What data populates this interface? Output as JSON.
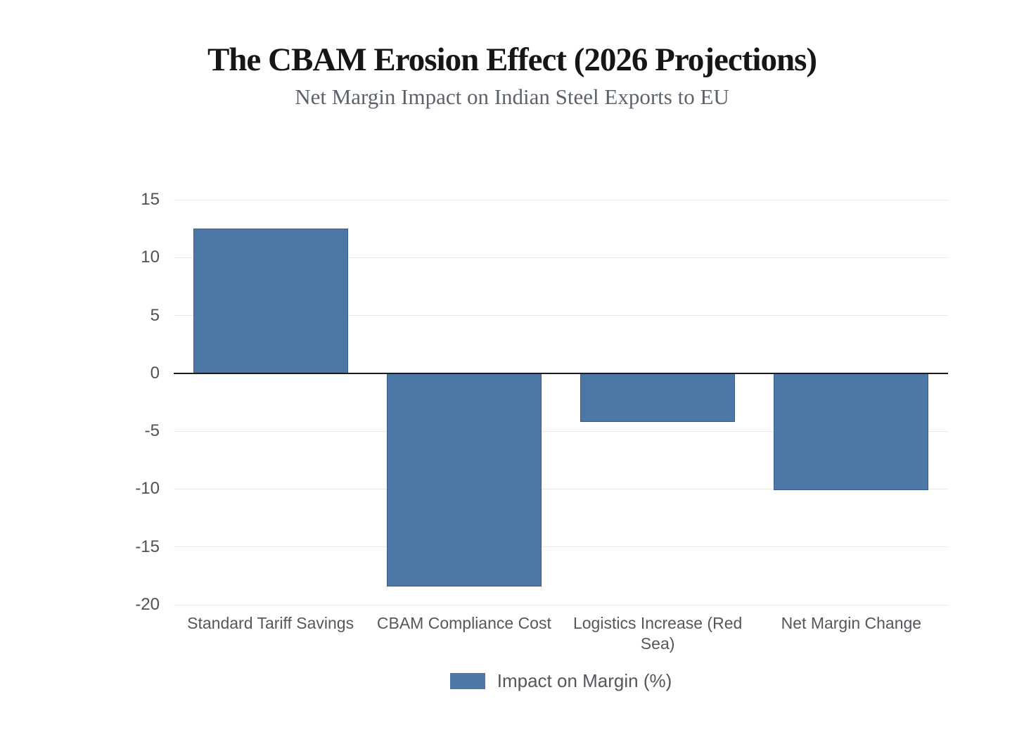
{
  "chart_data": {
    "type": "bar",
    "title": "The CBAM Erosion Effect (2026 Projections)",
    "subtitle": "Net Margin Impact on Indian Steel Exports to EU",
    "categories": [
      "Standard Tariff Savings",
      "CBAM Compliance Cost",
      "Logistics Increase (Red Sea)",
      "Net Margin Change"
    ],
    "series": [
      {
        "name": "Impact on Margin (%)",
        "values": [
          12.5,
          -18.4,
          -4.2,
          -10.1
        ]
      }
    ],
    "xlabel": "",
    "ylabel": "",
    "ylim": [
      -20,
      15
    ],
    "yticks": [
      15,
      10,
      5,
      0,
      -5,
      -10,
      -15,
      -20
    ],
    "grid": true,
    "legend_position": "bottom",
    "bar_color": "#4d78a6",
    "bar_border_color": "#36618f",
    "zero_line_color": "#1b1d20",
    "gridline_color": "#e7e9ec"
  }
}
